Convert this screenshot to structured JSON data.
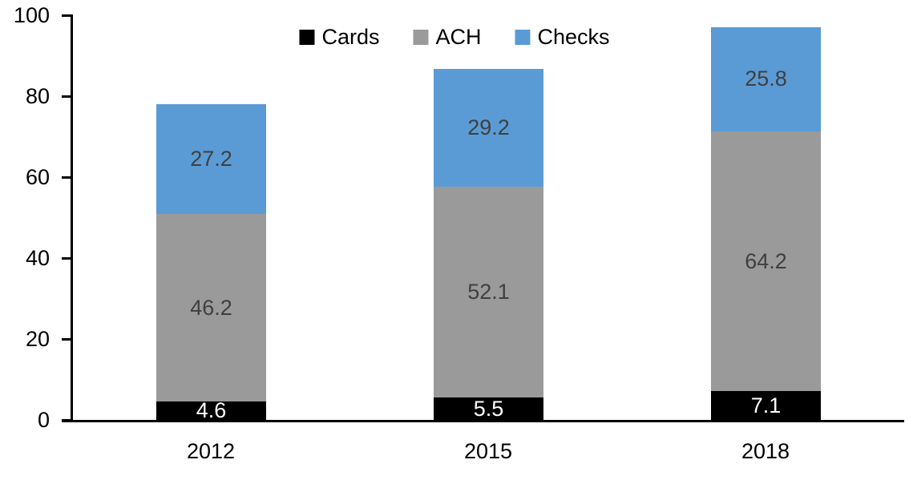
{
  "chart_data": {
    "type": "bar",
    "stacked": true,
    "title": "",
    "xlabel": "",
    "ylabel": "",
    "categories": [
      "2012",
      "2015",
      "2018"
    ],
    "series": [
      {
        "name": "Cards",
        "color": "#000000",
        "label_color": "#ffffff",
        "values": [
          4.6,
          5.5,
          7.1
        ]
      },
      {
        "name": "ACH",
        "color": "#9A9A9A",
        "label_color": "#3F3F3F",
        "values": [
          46.2,
          52.1,
          64.2
        ]
      },
      {
        "name": "Checks",
        "color": "#5B9BD5",
        "label_color": "#3F3F3F",
        "values": [
          27.2,
          29.2,
          25.8
        ]
      }
    ],
    "totals": [
      78.0,
      86.8,
      97.1
    ],
    "ylim": [
      0,
      100
    ],
    "yticks": [
      0,
      20,
      40,
      60,
      80,
      100
    ],
    "grid": false,
    "legend_position": "top-center",
    "background_color": "#ffffff",
    "axis_color": "#000000"
  }
}
